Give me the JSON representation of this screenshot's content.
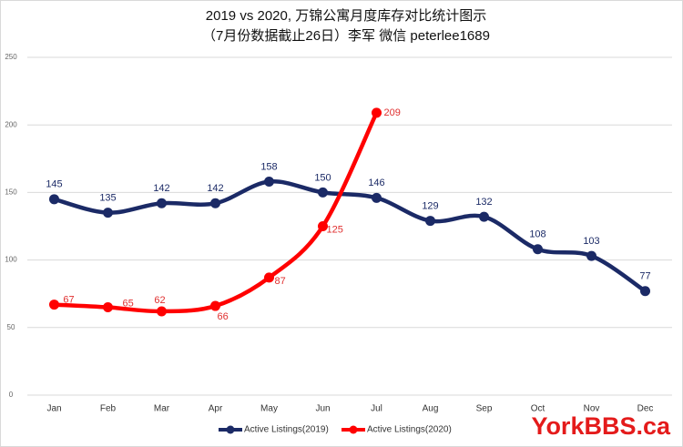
{
  "chart_data": {
    "type": "line",
    "title": "2019 vs 2020, 万锦公寓月度库存对比统计图示",
    "subtitle": "（7月份数据截止26日）李军 微信 peterlee1689",
    "watermark": "YorkBBS.ca",
    "categories": [
      "Jan",
      "Feb",
      "Mar",
      "Apr",
      "May",
      "Jun",
      "Jul",
      "Aug",
      "Sep",
      "Oct",
      "Nov",
      "Dec"
    ],
    "series": [
      {
        "name": "Active Listings(2019)",
        "color": "#1b2a66",
        "values": [
          145,
          135,
          142,
          142,
          158,
          150,
          146,
          129,
          132,
          108,
          103,
          77
        ]
      },
      {
        "name": "Active Listings(2020)",
        "color": "#ff0000",
        "values": [
          67,
          65,
          62,
          66,
          87,
          125,
          209,
          null,
          null,
          null,
          null,
          null
        ]
      }
    ],
    "ylim": [
      0,
      250
    ],
    "yticks": [
      0,
      50,
      100,
      150,
      200,
      250
    ],
    "grid": true,
    "legend": "bottom"
  }
}
